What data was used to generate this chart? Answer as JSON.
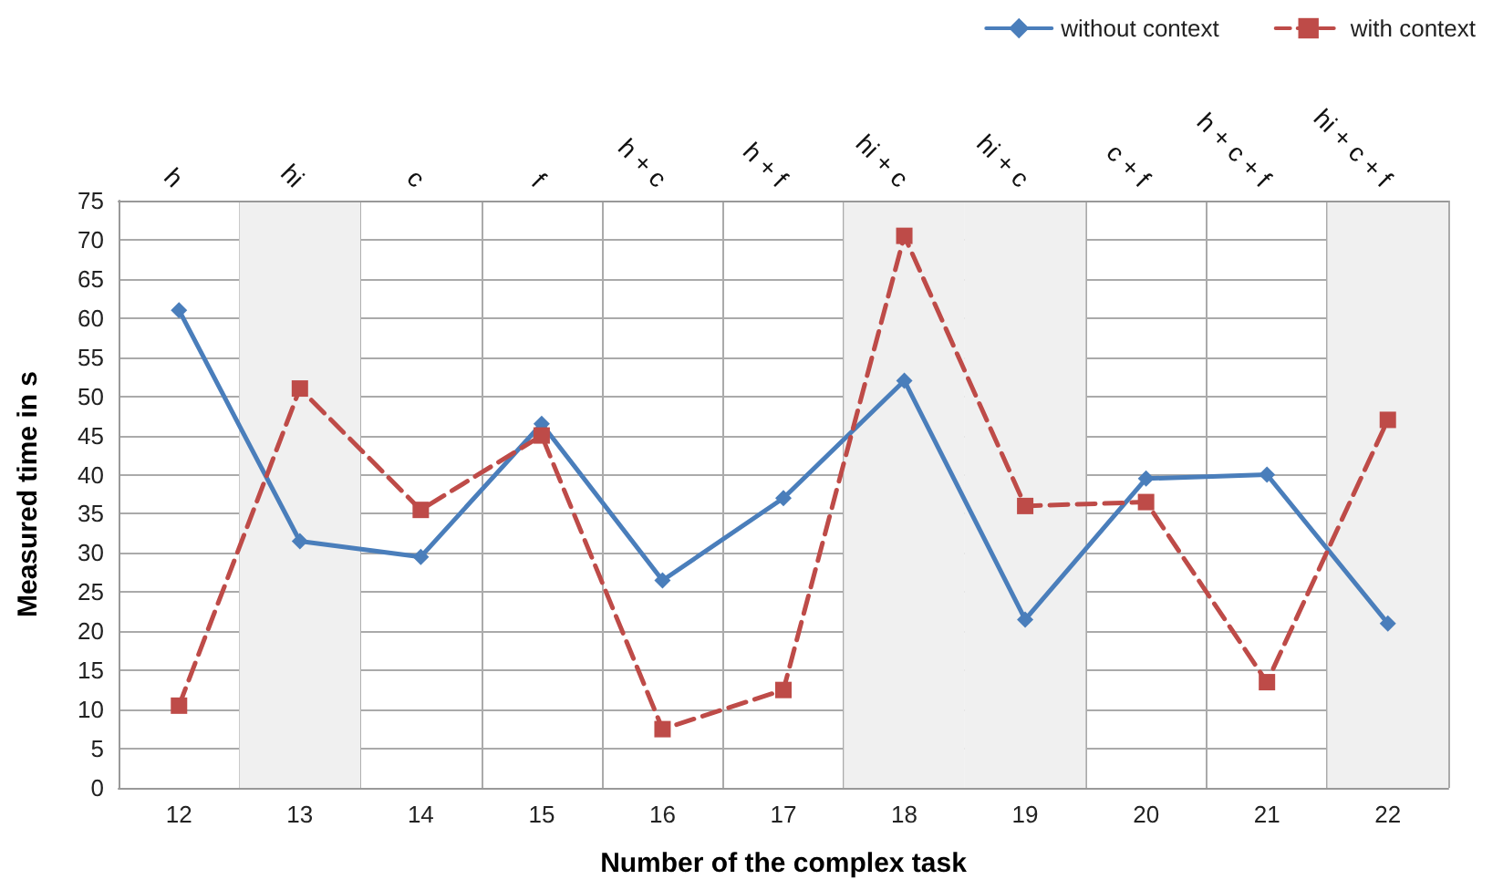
{
  "chart_data": {
    "type": "line",
    "xlabel": "Number of the complex task",
    "ylabel": "Measured time in s",
    "categories": [
      "12",
      "13",
      "14",
      "15",
      "16",
      "17",
      "18",
      "19",
      "20",
      "21",
      "22"
    ],
    "series": [
      {
        "name": "without context",
        "color": "#4a7ebb",
        "marker": "diamond",
        "line_style": "solid",
        "values": [
          61,
          31.5,
          29.5,
          46.5,
          26.5,
          37,
          52,
          21.5,
          39.5,
          40,
          21
        ]
      },
      {
        "name": "with context",
        "color": "#be4b48",
        "marker": "square",
        "line_style": "dashed",
        "values": [
          10.5,
          51,
          35.5,
          45,
          7.5,
          12.5,
          70.5,
          36,
          36.5,
          13.5,
          47
        ]
      }
    ],
    "ylim": [
      0,
      75
    ],
    "yticks": [
      0,
      5,
      10,
      15,
      20,
      25,
      30,
      35,
      40,
      45,
      50,
      55,
      60,
      65,
      70,
      75
    ],
    "grid": true,
    "legend": "top right",
    "bands": [
      {
        "axis": "x",
        "from": "13",
        "to": "13",
        "color": "#f0f0f0"
      },
      {
        "axis": "x",
        "from": "18",
        "to": "18",
        "color": "#f0f0f0"
      },
      {
        "axis": "x",
        "from": "19",
        "to": "19",
        "color": "#f0f0f0"
      },
      {
        "axis": "x",
        "from": "22",
        "to": "22",
        "color": "#f0f0f0"
      }
    ],
    "annotations": [
      "h",
      "hi",
      "c",
      "f",
      "h + c",
      "h + f",
      "hi + c",
      "hi + c",
      "c + f",
      "h + c + f",
      "hi + c + f"
    ]
  }
}
